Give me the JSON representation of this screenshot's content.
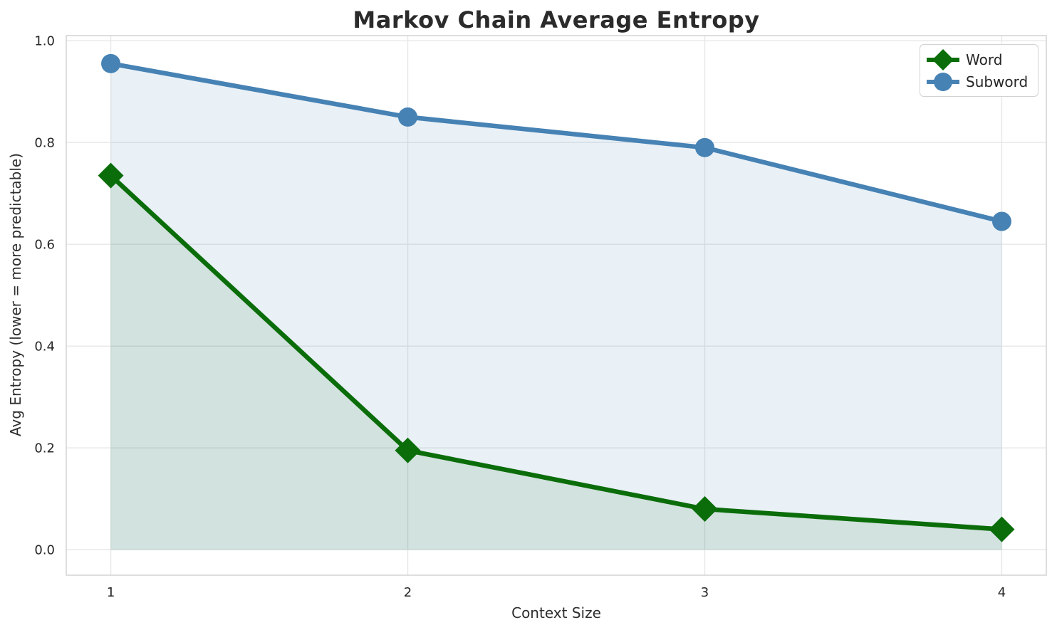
{
  "chart_data": {
    "type": "line",
    "title": "Markov Chain Average Entropy",
    "xlabel": "Context Size",
    "ylabel": "Avg Entropy (lower = more predictable)",
    "x": [
      1,
      2,
      3,
      4
    ],
    "xticks": [
      1,
      2,
      3,
      4
    ],
    "yticks": [
      0.0,
      0.2,
      0.4,
      0.6,
      0.8,
      1.0
    ],
    "xlim": [
      0.85,
      4.15
    ],
    "ylim": [
      -0.05,
      1.01
    ],
    "grid": true,
    "legend_position": "upper right",
    "fill_to_zero": true,
    "series": [
      {
        "name": "Word",
        "marker": "diamond",
        "color": "#0a6d0a",
        "fill_opacity": 0.1,
        "values": [
          0.735,
          0.195,
          0.08,
          0.04
        ]
      },
      {
        "name": "Subword",
        "marker": "circle",
        "color": "#4682b4",
        "fill_opacity": 0.12,
        "values": [
          0.955,
          0.85,
          0.79,
          0.645
        ]
      }
    ],
    "colors": {
      "grid": "#e7e7e7",
      "spine": "#d0d0d0",
      "tick_text": "#262626",
      "title_text": "#2b2b2b",
      "background": "#ffffff"
    }
  }
}
